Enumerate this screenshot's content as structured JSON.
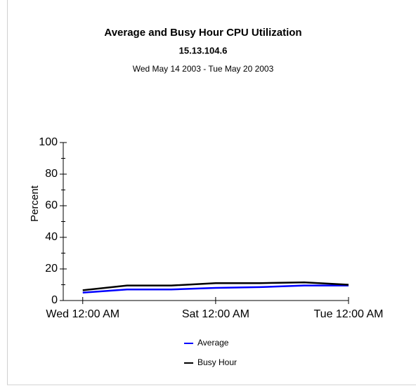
{
  "chart_data": {
    "type": "line",
    "title": "Average and Busy Hour CPU Utilization",
    "subtitle": "15.13.104.6",
    "date_range": "Wed May 14 2003 - Tue May 20 2003",
    "y_label": "Percent",
    "x": [
      0,
      1,
      2,
      3,
      4,
      5,
      6
    ],
    "series": [
      {
        "name": "Average",
        "color": "#0000ff",
        "values": [
          5,
          7,
          7,
          8,
          8.5,
          9.5,
          9.5
        ]
      },
      {
        "name": "Busy Hour",
        "color": "#000000",
        "values": [
          6.5,
          9.5,
          9.5,
          11,
          11,
          11.5,
          10
        ]
      }
    ],
    "xlim": [
      -0.44,
      6
    ],
    "xticks": [
      {
        "value": 0,
        "label": "Wed 12:00 AM"
      },
      {
        "value": 3,
        "label": "Sat 12:00 AM"
      },
      {
        "value": 6,
        "label": "Tue 12:00 AM"
      }
    ],
    "ylim": [
      0,
      100
    ],
    "yticks": [
      0,
      20,
      40,
      60,
      80,
      100
    ],
    "yminorticks": [
      10,
      30,
      50,
      70,
      90
    ],
    "grid": false
  }
}
